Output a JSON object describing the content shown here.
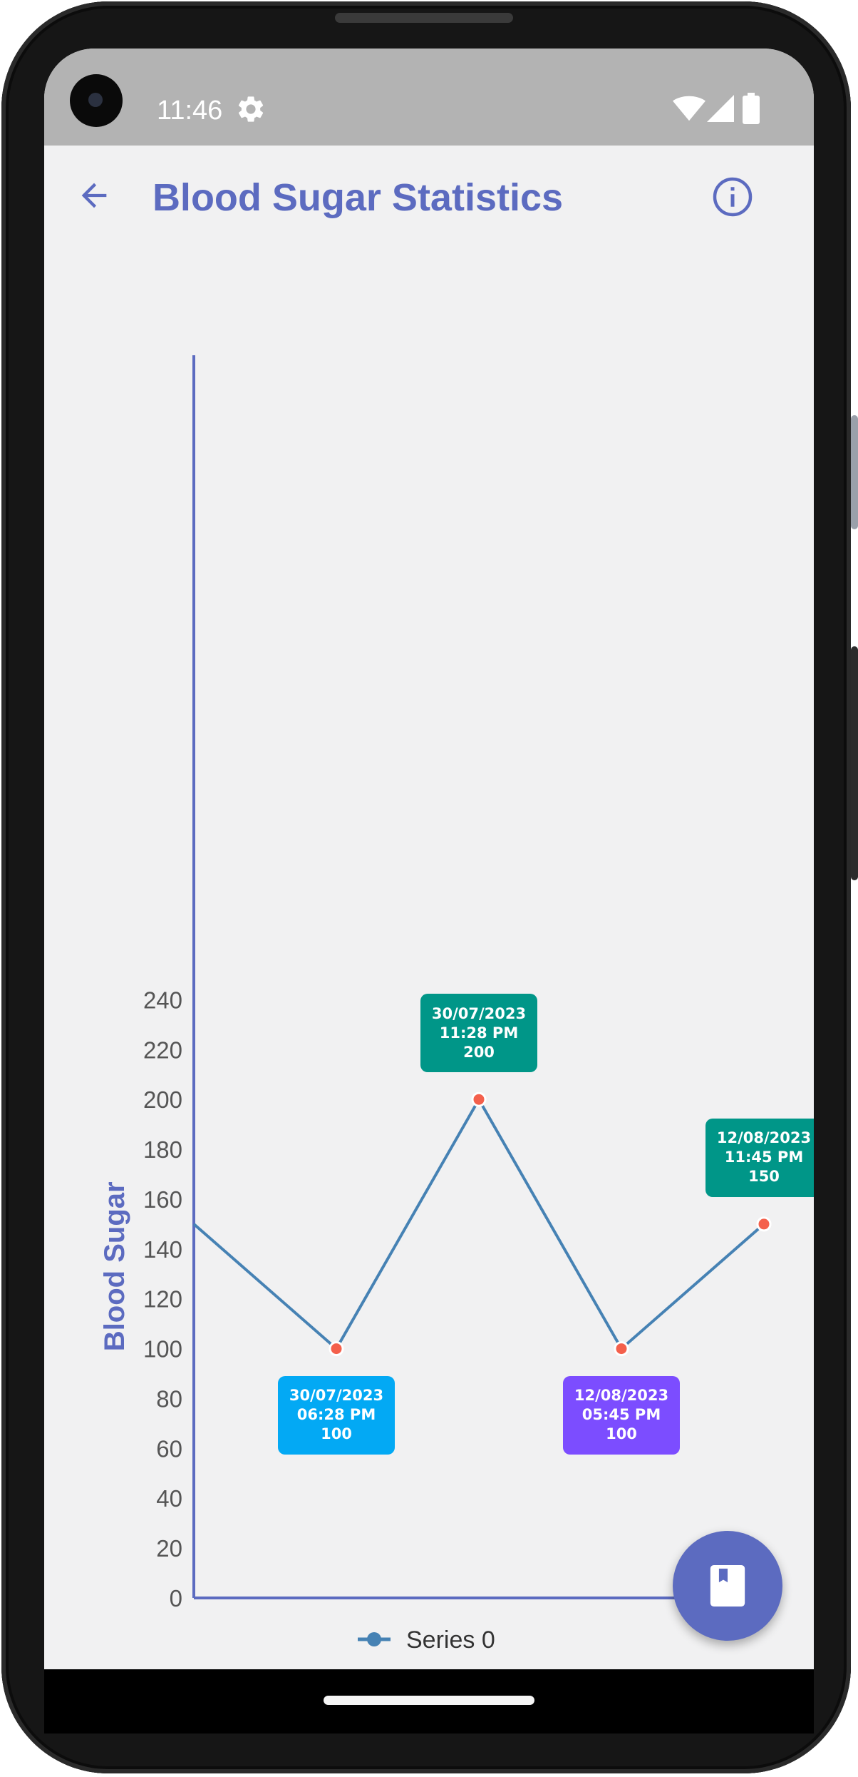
{
  "status_bar": {
    "time": "11:46",
    "icons": [
      "gear-icon",
      "wifi-icon",
      "signal-icon",
      "battery-icon"
    ]
  },
  "app_bar": {
    "title": "Blood Sugar Statistics",
    "back_icon": "arrow-left-icon",
    "info_icon": "info-circle-icon"
  },
  "fab": {
    "icon": "book-icon"
  },
  "colors": {
    "accent": "#5c6bc0",
    "line": "#4682b4",
    "point": "#f4604c",
    "tooltip_teal": "#009688",
    "tooltip_blue": "#03a9f4",
    "tooltip_purple": "#7c4dff"
  },
  "chart_data": {
    "type": "line",
    "ylabel": "Blood Sugar",
    "xlabel": "",
    "ylim": [
      0,
      250
    ],
    "yticks": [
      "0",
      "20",
      "40",
      "60",
      "80",
      "100",
      "120",
      "140",
      "160",
      "180",
      "200",
      "220",
      "240"
    ],
    "grid": false,
    "legend_position": "bottom",
    "series": [
      {
        "name": "Series 0",
        "values": [
          150,
          100,
          200,
          100,
          150
        ]
      }
    ],
    "tooltips": [
      {
        "date": "30/07/2023",
        "time": "06:28 PM",
        "value": "100",
        "color": "#03a9f4"
      },
      {
        "date": "30/07/2023",
        "time": "11:28 PM",
        "value": "200",
        "color": "#009688"
      },
      {
        "date": "12/08/2023",
        "time": "05:45 PM",
        "value": "100",
        "color": "#7c4dff"
      },
      {
        "date": "12/08/2023",
        "time": "11:45 PM",
        "value": "150",
        "color": "#009688"
      }
    ]
  }
}
